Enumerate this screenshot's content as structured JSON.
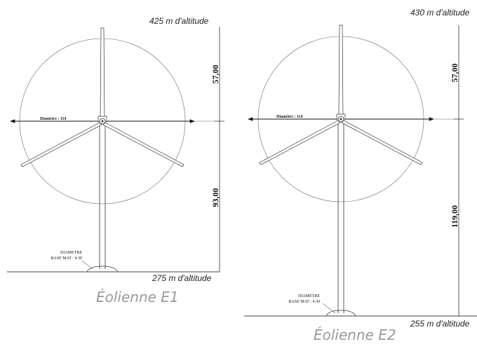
{
  "turbines": [
    {
      "caption": "Éolienne E1",
      "top_altitude": "425 m d'altitude",
      "bottom_altitude": "275 m d'altitude",
      "rotor_radius": "57,00",
      "hub_height": "93,00",
      "diameter_label": "Diamètre : 114",
      "base_label_line1": "DIAMETRE",
      "base_label_line2": "BASE MAT : 4.30"
    },
    {
      "caption": "Éolienne E2",
      "top_altitude": "430 m d'altitude",
      "bottom_altitude": "255 m d'altitude",
      "rotor_radius": "57,00",
      "hub_height": "119,00",
      "diameter_label": "Diamètre : 114",
      "base_label_line1": "DIAMETRE",
      "base_label_line2": "BASE MAT : 4.30"
    }
  ]
}
